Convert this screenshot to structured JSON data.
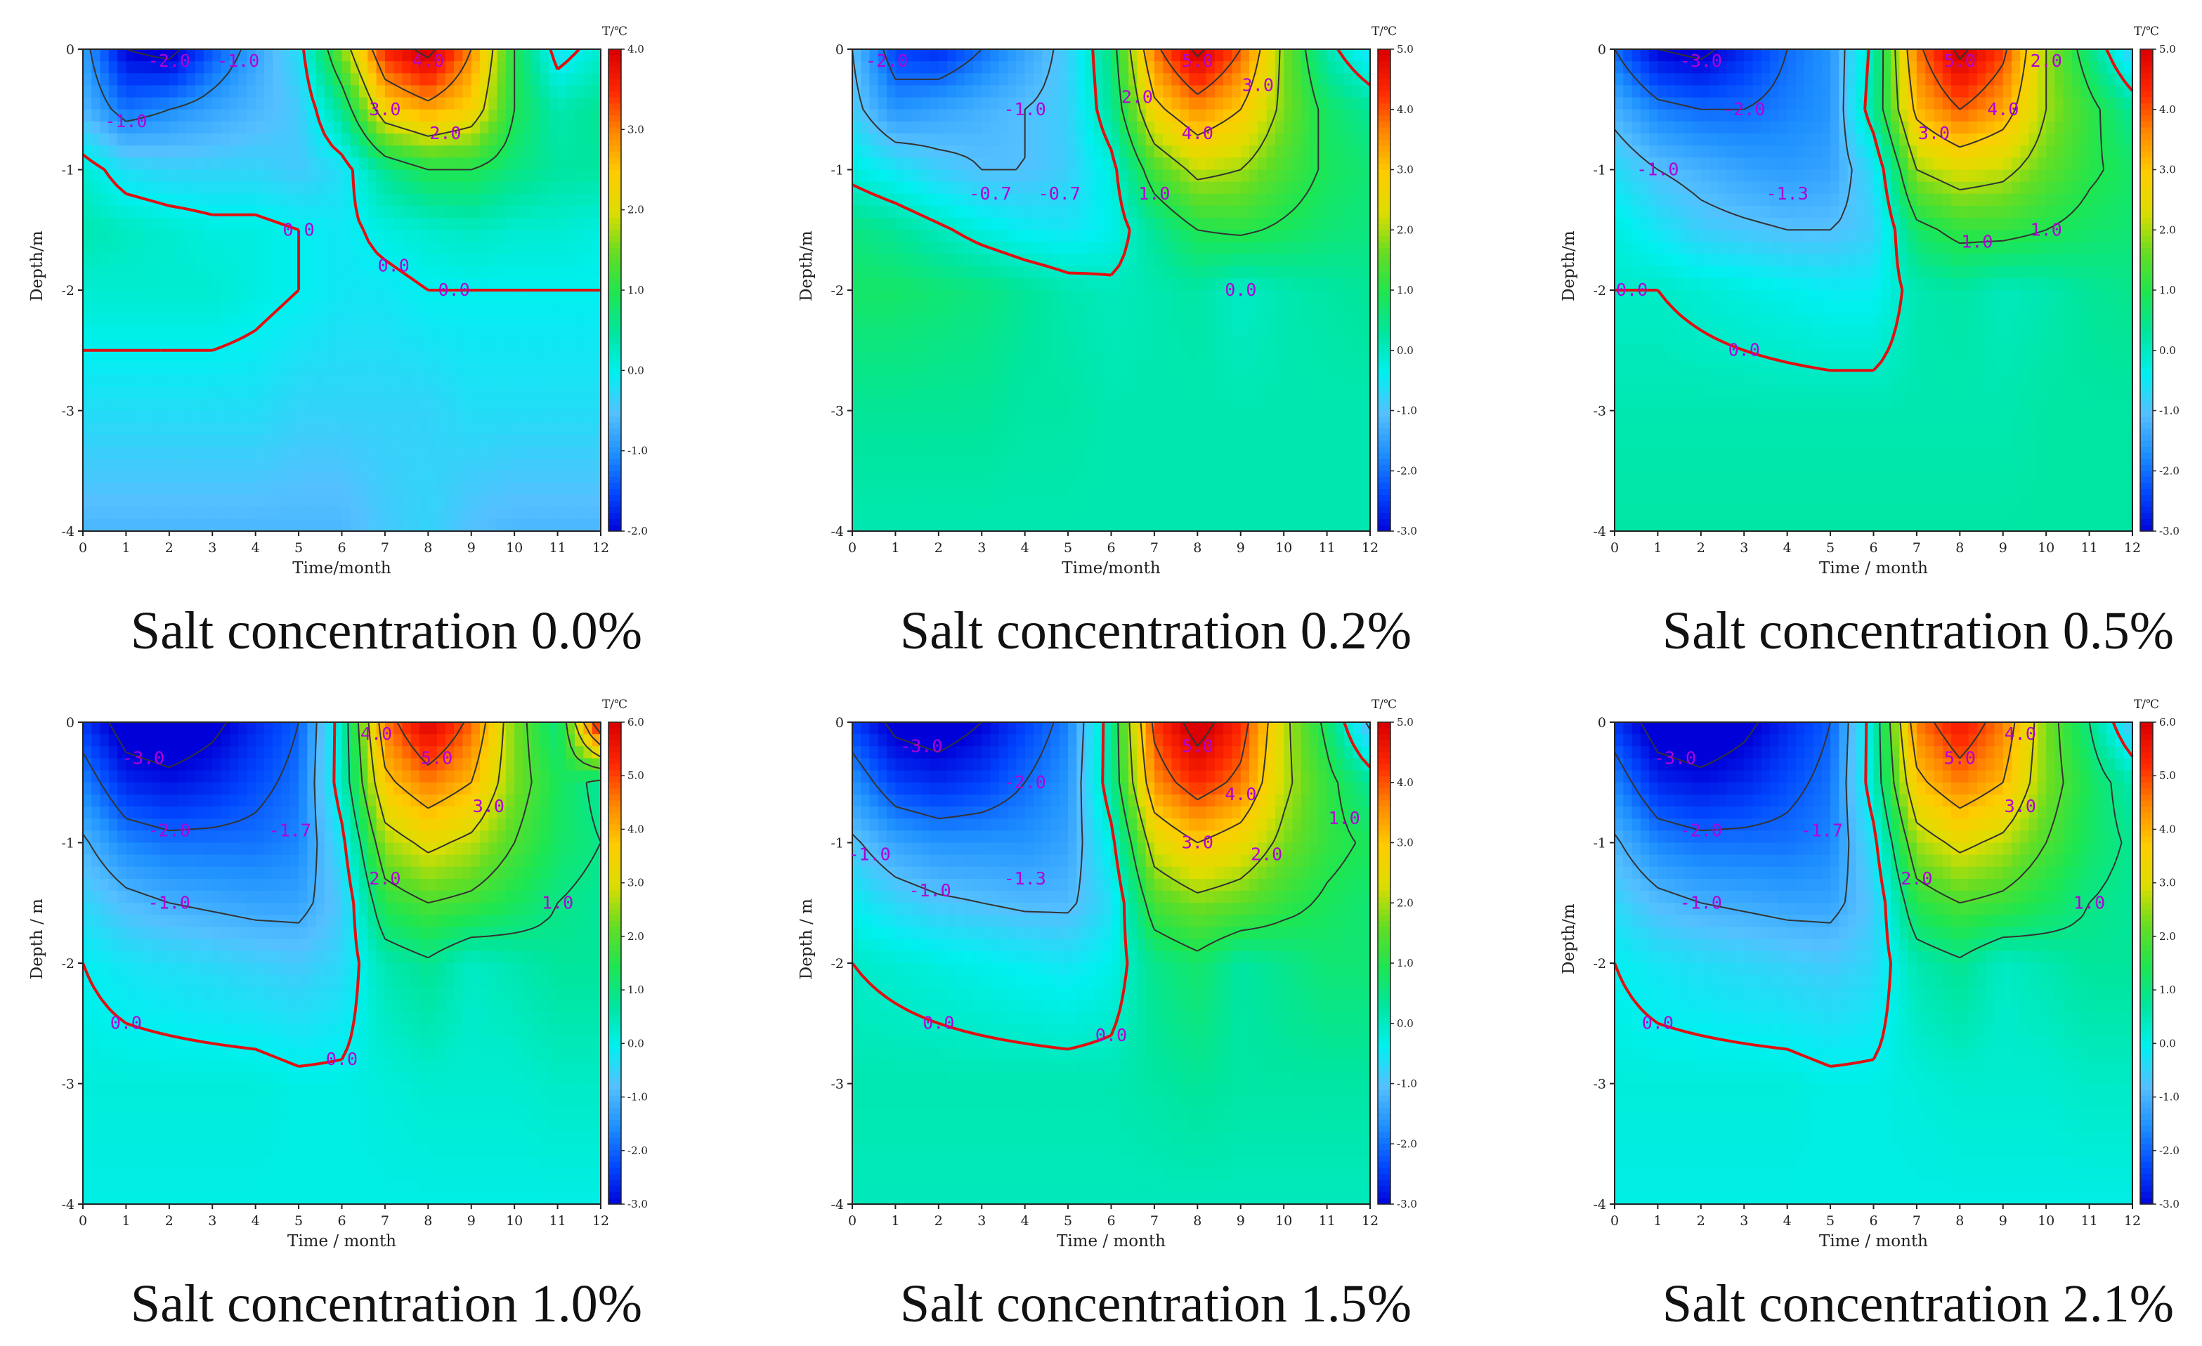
{
  "figure": {
    "panels": [
      {
        "caption_prefix": "Salt concentration",
        "caption_value": "0.0%"
      },
      {
        "caption_prefix": "Salt concentration",
        "caption_value": "0.2%"
      },
      {
        "caption_prefix": "Salt concentration",
        "caption_value": "0.5%"
      },
      {
        "caption_prefix": "Salt concentration",
        "caption_value": "1.0%"
      },
      {
        "caption_prefix": "Salt concentration",
        "caption_value": "1.5%"
      },
      {
        "caption_prefix": "Salt concentration",
        "caption_value": "2.1%"
      }
    ]
  },
  "colors": {
    "palette": [
      "#0000d8",
      "#0046ff",
      "#1e90ff",
      "#55c0ff",
      "#00f0f0",
      "#00e6a0",
      "#1ee650",
      "#66dd22",
      "#dddd00",
      "#ffcc00",
      "#ff8800",
      "#ff2800",
      "#dd0000"
    ],
    "zero_line": "#e01010",
    "contour_line": "#333333",
    "contour_label": "#b000d8"
  },
  "chart_data": [
    {
      "type": "heatmap",
      "panel": 0,
      "title": "Salt concentration 0.0%",
      "xlabel": "Time/month",
      "ylabel": "Depth/m",
      "xlim": [
        0,
        12
      ],
      "ylim": [
        -4,
        0
      ],
      "xticks": [
        "0",
        "1",
        "2",
        "3",
        "4",
        "5",
        "6",
        "7",
        "8",
        "9",
        "10",
        "11",
        "12"
      ],
      "yticks": [
        "0",
        "-1",
        "-2",
        "-3",
        "-4"
      ],
      "colorbar": {
        "title": "T/℃",
        "range": [
          -2.0,
          4.0
        ],
        "ticks": [
          "4.0",
          "3.0",
          "2.0",
          "1.0",
          "0.0",
          "-1.0",
          "-2.0"
        ]
      },
      "contour_labels": [
        "-2.0",
        "-1.0",
        "4.0",
        "3.0",
        "2.0",
        "-1.0",
        "0.0",
        "0.0",
        "0.0"
      ],
      "grid": {
        "x": [
          0,
          1,
          2,
          3,
          4,
          5,
          6,
          7,
          8,
          9,
          10,
          11,
          12
        ],
        "y": [
          0,
          -0.5,
          -1,
          -1.5,
          -2,
          -3,
          -4
        ],
        "values": [
          [
            -0.8,
            -2.0,
            -2.2,
            -1.4,
            -0.8,
            -0.2,
            1.6,
            3.6,
            4.2,
            3.0,
            1.0,
            -0.2,
            0.2
          ],
          [
            -0.6,
            -1.2,
            -1.0,
            -0.8,
            -0.6,
            -0.4,
            0.6,
            2.4,
            2.8,
            2.4,
            1.0,
            0.4,
            0.6
          ],
          [
            0.2,
            -0.2,
            -0.3,
            -0.3,
            -0.3,
            -0.4,
            -0.2,
            0.6,
            1.0,
            1.0,
            0.7,
            0.5,
            0.5
          ],
          [
            0.4,
            0.3,
            0.2,
            0.1,
            0.1,
            0.0,
            -0.1,
            0.1,
            0.2,
            0.3,
            0.2,
            0.2,
            0.1
          ],
          [
            0.2,
            0.2,
            0.2,
            0.2,
            0.1,
            0.0,
            -0.1,
            -0.1,
            0.0,
            0.0,
            0.0,
            0.0,
            0.0
          ],
          [
            -0.2,
            -0.2,
            -0.2,
            -0.2,
            -0.2,
            -0.3,
            -0.3,
            -0.3,
            -0.3,
            -0.2,
            -0.2,
            -0.2,
            -0.2
          ],
          [
            -0.6,
            -0.6,
            -0.6,
            -0.6,
            -0.6,
            -0.6,
            -0.6,
            -0.4,
            -0.3,
            -0.5,
            -0.6,
            -0.6,
            -0.6
          ]
        ]
      }
    },
    {
      "type": "heatmap",
      "panel": 1,
      "title": "Salt concentration 0.2%",
      "xlabel": "Time/month",
      "ylabel": "Depth/m",
      "xlim": [
        0,
        12
      ],
      "ylim": [
        -4,
        0
      ],
      "xticks": [
        "0",
        "1",
        "2",
        "3",
        "4",
        "5",
        "6",
        "7",
        "8",
        "9",
        "10",
        "11",
        "12"
      ],
      "yticks": [
        "0",
        "-1",
        "-2",
        "-3",
        "-4"
      ],
      "colorbar": {
        "title": "T/℃",
        "range": [
          -3.0,
          5.0
        ],
        "ticks": [
          "5.0",
          "4.0",
          "3.0",
          "2.0",
          "1.0",
          "0.0",
          "-1.0",
          "-2.0",
          "-3.0"
        ]
      },
      "contour_labels": [
        "-2.0",
        "-1.0",
        "-0.7",
        "5.0",
        "4.0",
        "3.0",
        "2.0",
        "1.0",
        "0.0",
        "-0.7"
      ],
      "grid": {
        "x": [
          0,
          1,
          2,
          3,
          4,
          5,
          6,
          7,
          8,
          9,
          10,
          11,
          12
        ],
        "y": [
          0,
          -0.5,
          -1,
          -1.5,
          -2,
          -3,
          -4
        ],
        "values": [
          [
            -1.0,
            -2.4,
            -2.6,
            -2.0,
            -1.4,
            -0.8,
            0.6,
            3.8,
            5.2,
            4.0,
            1.8,
            0.2,
            -0.6
          ],
          [
            -0.8,
            -1.6,
            -1.4,
            -1.2,
            -1.0,
            -0.8,
            0.4,
            2.8,
            3.6,
            3.0,
            1.8,
            0.8,
            0.4
          ],
          [
            -0.2,
            -0.5,
            -0.8,
            -1.0,
            -1.0,
            -0.8,
            -0.2,
            1.4,
            2.2,
            2.0,
            1.4,
            0.9,
            0.7
          ],
          [
            0.6,
            0.4,
            0.1,
            -0.2,
            -0.4,
            -0.5,
            -0.3,
            0.4,
            1.0,
            1.1,
            0.9,
            0.7,
            0.6
          ],
          [
            0.8,
            0.8,
            0.7,
            0.6,
            0.4,
            0.2,
            0.1,
            0.2,
            0.3,
            0.0,
            0.2,
            0.3,
            0.4
          ],
          [
            0.4,
            0.4,
            0.4,
            0.4,
            0.3,
            0.3,
            0.2,
            0.2,
            0.2,
            0.2,
            0.2,
            0.2,
            0.2
          ],
          [
            0.2,
            0.2,
            0.2,
            0.2,
            0.2,
            0.2,
            0.2,
            0.2,
            0.2,
            0.2,
            0.2,
            0.2,
            0.2
          ]
        ]
      }
    },
    {
      "type": "heatmap",
      "panel": 2,
      "title": "Salt concentration 0.5%",
      "xlabel": "Time / month",
      "ylabel": "Depth/m",
      "xlim": [
        0,
        12
      ],
      "ylim": [
        -4,
        0
      ],
      "xticks": [
        "0",
        "1",
        "2",
        "3",
        "4",
        "5",
        "6",
        "7",
        "8",
        "9",
        "10",
        "11",
        "12"
      ],
      "yticks": [
        "0",
        "-1",
        "-2",
        "-3",
        "-4"
      ],
      "colorbar": {
        "title": "T/℃",
        "range": [
          -3.0,
          5.0
        ],
        "ticks": [
          "5.0",
          "4.0",
          "3.0",
          "2.0",
          "1.0",
          "0.0",
          "-1.0",
          "-2.0",
          "-3.0"
        ]
      },
      "contour_labels": [
        "-3.0",
        "-2.0",
        "-1.3",
        "-1.0",
        "5.0",
        "4.0",
        "3.0",
        "2.0",
        "1.0",
        "0.0",
        "0.0",
        "1.0"
      ],
      "grid": {
        "x": [
          0,
          1,
          2,
          3,
          4,
          5,
          6,
          7,
          8,
          9,
          10,
          11,
          12
        ],
        "y": [
          0,
          -0.5,
          -1,
          -1.5,
          -2,
          -3,
          -4
        ],
        "values": [
          [
            -2.0,
            -3.0,
            -3.2,
            -2.6,
            -2.0,
            -1.6,
            0.2,
            3.8,
            5.2,
            4.2,
            2.0,
            0.6,
            -0.9
          ],
          [
            -1.2,
            -1.8,
            -2.0,
            -2.0,
            -1.8,
            -1.6,
            0.4,
            3.2,
            4.0,
            3.4,
            2.0,
            1.2,
            0.4
          ],
          [
            -0.6,
            -1.0,
            -1.2,
            -1.4,
            -1.5,
            -1.4,
            -0.6,
            2.0,
            2.4,
            2.2,
            1.6,
            1.1,
            0.8
          ],
          [
            -0.2,
            -0.5,
            -0.8,
            -0.9,
            -1.0,
            -1.0,
            -0.8,
            0.8,
            1.2,
            1.2,
            1.0,
            0.8,
            0.7
          ],
          [
            0.0,
            0.0,
            -0.1,
            -0.2,
            -0.3,
            -0.4,
            -0.4,
            0.2,
            0.3,
            0.1,
            0.2,
            0.4,
            0.5
          ],
          [
            0.2,
            0.2,
            0.2,
            0.2,
            0.2,
            0.2,
            0.2,
            0.2,
            0.2,
            0.2,
            0.3,
            0.3,
            0.3
          ],
          [
            0.3,
            0.3,
            0.3,
            0.3,
            0.3,
            0.3,
            0.3,
            0.3,
            0.3,
            0.3,
            0.3,
            0.3,
            0.3
          ]
        ]
      }
    },
    {
      "type": "heatmap",
      "panel": 3,
      "title": "Salt concentration 1.0%",
      "xlabel": "Time / month",
      "ylabel": "Depth / m",
      "xlim": [
        0,
        12
      ],
      "ylim": [
        -4,
        0
      ],
      "xticks": [
        "0",
        "1",
        "2",
        "3",
        "4",
        "5",
        "6",
        "7",
        "8",
        "9",
        "10",
        "11",
        "12"
      ],
      "yticks": [
        "0",
        "-1",
        "-2",
        "-3",
        "-4"
      ],
      "colorbar": {
        "title": "T/℃",
        "range": [
          -3.0,
          6.0
        ],
        "ticks": [
          "6.0",
          "5.0",
          "4.0",
          "3.0",
          "2.0",
          "1.0",
          "0.0",
          "-1.0",
          "-2.0",
          "-3.0"
        ]
      },
      "contour_labels": [
        "-3.0",
        "-2.0",
        "-1.7",
        "-1.0",
        "5.0",
        "4.0",
        "3.0",
        "2.0",
        "1.0",
        "0.0",
        "0.0"
      ],
      "grid": {
        "x": [
          0,
          1,
          2,
          3,
          4,
          5,
          6,
          7,
          8,
          9,
          10,
          11,
          12
        ],
        "y": [
          0,
          -0.5,
          -1,
          -1.5,
          -2,
          -3,
          -4
        ],
        "values": [
          [
            -2.4,
            -3.4,
            -3.6,
            -3.2,
            -2.6,
            -2.0,
            0.4,
            4.6,
            6.0,
            4.8,
            2.4,
            1.0,
            6.0
          ],
          [
            -1.6,
            -2.6,
            -2.8,
            -2.6,
            -2.2,
            -1.8,
            0.4,
            3.8,
            4.6,
            4.0,
            2.4,
            1.4,
            0.8
          ],
          [
            -0.9,
            -1.6,
            -1.8,
            -1.8,
            -1.8,
            -1.6,
            -0.2,
            2.6,
            3.2,
            2.8,
            2.0,
            1.3,
            1.0
          ],
          [
            -0.4,
            -0.8,
            -1.0,
            -1.1,
            -1.2,
            -1.2,
            -0.6,
            1.6,
            2.0,
            1.8,
            1.4,
            1.0,
            0.8
          ],
          [
            0.0,
            -0.2,
            -0.3,
            -0.4,
            -0.5,
            -0.6,
            -0.4,
            0.6,
            0.9,
            0.4,
            0.6,
            0.8,
            0.8
          ],
          [
            0.2,
            0.2,
            0.2,
            0.2,
            0.2,
            0.1,
            0.1,
            0.2,
            0.3,
            0.3,
            0.3,
            0.4,
            0.4
          ],
          [
            0.1,
            0.1,
            0.1,
            0.1,
            0.1,
            0.1,
            0.1,
            0.1,
            0.1,
            0.1,
            0.1,
            0.1,
            0.1
          ]
        ]
      }
    },
    {
      "type": "heatmap",
      "panel": 4,
      "title": "Salt concentration 1.5%",
      "xlabel": "Time / month",
      "ylabel": "Depth / m",
      "xlim": [
        0,
        12
      ],
      "ylim": [
        -4,
        0
      ],
      "xticks": [
        "0",
        "1",
        "2",
        "3",
        "4",
        "5",
        "6",
        "7",
        "8",
        "9",
        "10",
        "11",
        "12"
      ],
      "yticks": [
        "0",
        "-1",
        "-2",
        "-3",
        "-4"
      ],
      "colorbar": {
        "title": "T/℃",
        "range": [
          -3.0,
          5.0
        ],
        "ticks": [
          "5.0",
          "4.0",
          "3.0",
          "2.0",
          "1.0",
          "0.0",
          "-1.0",
          "-2.0",
          "-3.0"
        ]
      },
      "contour_labels": [
        "-3.0",
        "-2.0",
        "-1.3",
        "-1.0",
        "5.0",
        "4.0",
        "3.0",
        "2.0",
        "1.0",
        "0.0",
        "0.0",
        "-1.0"
      ],
      "grid": {
        "x": [
          0,
          1,
          2,
          3,
          4,
          5,
          6,
          7,
          8,
          9,
          10,
          11,
          12
        ],
        "y": [
          0,
          -0.5,
          -1,
          -1.5,
          -2,
          -3,
          -4
        ],
        "values": [
          [
            -2.4,
            -3.2,
            -3.4,
            -3.0,
            -2.4,
            -1.8,
            0.4,
            4.2,
            5.4,
            4.4,
            2.2,
            0.8,
            -1.2
          ],
          [
            -1.6,
            -2.4,
            -2.6,
            -2.4,
            -2.0,
            -1.6,
            0.4,
            3.6,
            4.4,
            3.8,
            2.2,
            1.2,
            0.4
          ],
          [
            -0.9,
            -1.4,
            -1.6,
            -1.6,
            -1.6,
            -1.4,
            -0.2,
            2.4,
            3.0,
            2.6,
            1.8,
            1.2,
            0.9
          ],
          [
            -0.4,
            -0.7,
            -0.9,
            -1.0,
            -1.1,
            -1.1,
            -0.6,
            1.4,
            1.8,
            1.6,
            1.2,
            0.9,
            0.7
          ],
          [
            0.0,
            -0.1,
            -0.2,
            -0.3,
            -0.4,
            -0.5,
            -0.3,
            0.5,
            0.8,
            0.3,
            0.5,
            0.7,
            0.7
          ],
          [
            0.2,
            0.2,
            0.2,
            0.2,
            0.2,
            0.2,
            0.2,
            0.3,
            0.4,
            0.3,
            0.3,
            0.3,
            0.3
          ],
          [
            0.1,
            0.1,
            0.1,
            0.1,
            0.1,
            0.1,
            0.1,
            0.1,
            0.1,
            0.1,
            0.1,
            0.1,
            0.1
          ]
        ]
      }
    },
    {
      "type": "heatmap",
      "panel": 5,
      "title": "Salt concentration 2.1%",
      "xlabel": "Time / month",
      "ylabel": "Depth/m",
      "xlim": [
        0,
        12
      ],
      "ylim": [
        -4,
        0
      ],
      "xticks": [
        "0",
        "1",
        "2",
        "3",
        "4",
        "5",
        "6",
        "7",
        "8",
        "9",
        "10",
        "11",
        "12"
      ],
      "yticks": [
        "0",
        "-1",
        "-2",
        "-3",
        "-4"
      ],
      "colorbar": {
        "title": "T/℃",
        "range": [
          -3.0,
          6.0
        ],
        "ticks": [
          "6.0",
          "5.0",
          "4.0",
          "3.0",
          "2.0",
          "1.0",
          "0.0",
          "-1.0",
          "-2.0",
          "-3.0"
        ]
      },
      "contour_labels": [
        "-3.0",
        "-2.0",
        "-1.7",
        "-1.0",
        "5.0",
        "4.0",
        "3.0",
        "2.0",
        "1.0",
        "0.0"
      ],
      "grid": {
        "x": [
          0,
          1,
          2,
          3,
          4,
          5,
          6,
          7,
          8,
          9,
          10,
          11,
          12
        ],
        "y": [
          0,
          -0.5,
          -1,
          -1.5,
          -2,
          -3,
          -4
        ],
        "values": [
          [
            -2.4,
            -3.4,
            -3.6,
            -3.2,
            -2.6,
            -2.0,
            0.4,
            4.6,
            5.6,
            4.6,
            2.4,
            1.0,
            -0.8
          ],
          [
            -1.6,
            -2.6,
            -2.8,
            -2.6,
            -2.2,
            -1.8,
            0.4,
            3.8,
            4.6,
            4.0,
            2.4,
            1.4,
            0.6
          ],
          [
            -0.9,
            -1.6,
            -1.8,
            -1.8,
            -1.8,
            -1.6,
            -0.2,
            2.6,
            3.2,
            2.8,
            2.0,
            1.3,
            0.9
          ],
          [
            -0.4,
            -0.8,
            -1.0,
            -1.1,
            -1.2,
            -1.2,
            -0.6,
            1.6,
            2.0,
            1.8,
            1.4,
            1.0,
            0.8
          ],
          [
            0.0,
            -0.2,
            -0.3,
            -0.4,
            -0.5,
            -0.6,
            -0.4,
            0.6,
            0.9,
            0.4,
            0.6,
            0.8,
            0.8
          ],
          [
            0.2,
            0.2,
            0.2,
            0.2,
            0.2,
            0.1,
            0.1,
            0.2,
            0.3,
            0.3,
            0.3,
            0.4,
            0.4
          ],
          [
            0.1,
            0.1,
            0.1,
            0.1,
            0.1,
            0.1,
            0.1,
            0.1,
            0.1,
            0.1,
            0.1,
            0.1,
            0.1
          ]
        ]
      }
    }
  ]
}
